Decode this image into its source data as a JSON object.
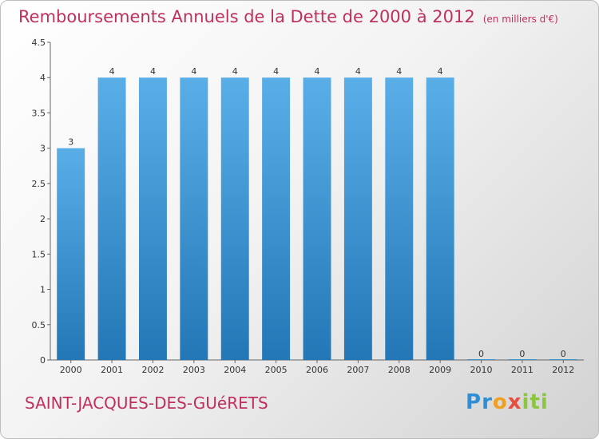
{
  "header": {
    "title": "Remboursements Annuels de la Dette de 2000 à 2012",
    "unit": "(en milliers d'€)"
  },
  "footer": {
    "commune": "SAINT-JACQUES-DES-GUéRETS",
    "logo": "Proxiti"
  },
  "colors": {
    "title": "#c0305e",
    "bar_top": "#5aaee8",
    "bar_bottom": "#2377b6"
  },
  "chart_data": {
    "type": "bar",
    "title": "Remboursements Annuels de la Dette de 2000 à 2012",
    "xlabel": "",
    "ylabel": "",
    "categories": [
      "2000",
      "2001",
      "2002",
      "2003",
      "2004",
      "2005",
      "2006",
      "2007",
      "2008",
      "2009",
      "2010",
      "2011",
      "2012"
    ],
    "values": [
      3,
      4,
      4,
      4,
      4,
      4,
      4,
      4,
      4,
      4,
      0,
      0,
      0
    ],
    "data_labels": [
      "3",
      "4",
      "4",
      "4",
      "4",
      "4",
      "4",
      "4",
      "4",
      "4",
      "0",
      "0",
      "0"
    ],
    "ylim": [
      0,
      4.5
    ],
    "y_ticks": [
      {
        "value": 0,
        "label": "0"
      },
      {
        "value": 0.5,
        "label": "0.5"
      },
      {
        "value": 1,
        "label": "1"
      },
      {
        "value": 1.5,
        "label": "1.5"
      },
      {
        "value": 2,
        "label": "2"
      },
      {
        "value": 2.5,
        "label": "2.5"
      },
      {
        "value": 3,
        "label": "3"
      },
      {
        "value": 3.5,
        "label": "3.5"
      },
      {
        "value": 4,
        "label": "4"
      },
      {
        "value": 4.5,
        "label": "4.5"
      }
    ],
    "grid": false,
    "legend": "none"
  }
}
